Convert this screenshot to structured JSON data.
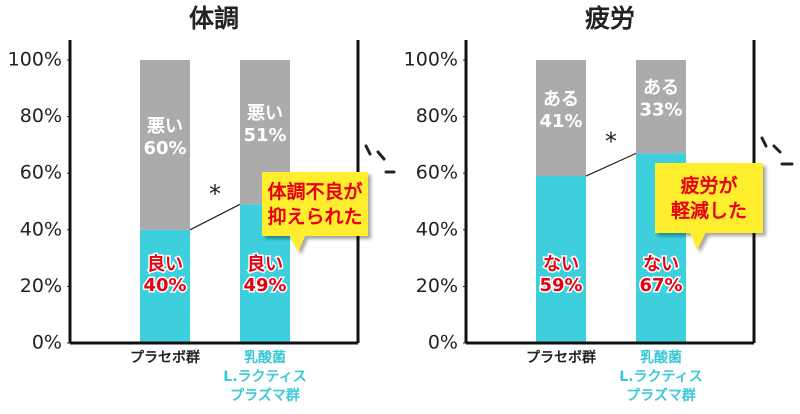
{
  "chart_data": [
    {
      "type": "stacked-bar",
      "title": "体調",
      "categories": [
        "プラセボ群",
        "乳酸菌\nL.ラクティス\nプラズマ群"
      ],
      "category_colors": [
        "#222222",
        "#3cc9d6"
      ],
      "series": [
        {
          "name": "良い",
          "color": "#3dd0dc",
          "label_color": "#e60012",
          "values": [
            40,
            49
          ],
          "value_labels": [
            "40%",
            "49%"
          ]
        },
        {
          "name": "悪い",
          "color": "#ababab",
          "label_color": "#ffffff",
          "values": [
            60,
            51
          ],
          "value_labels": [
            "60%",
            "51%"
          ]
        }
      ],
      "ylim": [
        0,
        100
      ],
      "yticks": [
        {
          "value": 0,
          "label": "0%"
        },
        {
          "value": 20,
          "label": "20%"
        },
        {
          "value": 40,
          "label": "40%"
        },
        {
          "value": 60,
          "label": "60%"
        },
        {
          "value": 80,
          "label": "80%"
        },
        {
          "value": 100,
          "label": "100%"
        }
      ],
      "annotation": "*",
      "callout": "体調不良が\n抑えられた"
    },
    {
      "type": "stacked-bar",
      "title": "疲労",
      "categories": [
        "プラセボ群",
        "乳酸菌\nL.ラクティス\nプラズマ群"
      ],
      "category_colors": [
        "#222222",
        "#3cc9d6"
      ],
      "series": [
        {
          "name": "ない",
          "color": "#3dd0dc",
          "label_color": "#e60012",
          "values": [
            59,
            67
          ],
          "value_labels": [
            "59%",
            "67%"
          ]
        },
        {
          "name": "ある",
          "color": "#ababab",
          "label_color": "#ffffff",
          "values": [
            41,
            33
          ],
          "value_labels": [
            "41%",
            "33%"
          ]
        }
      ],
      "ylim": [
        0,
        100
      ],
      "yticks": [
        {
          "value": 0,
          "label": "0%"
        },
        {
          "value": 20,
          "label": "20%"
        },
        {
          "value": 40,
          "label": "40%"
        },
        {
          "value": 60,
          "label": "60%"
        },
        {
          "value": 80,
          "label": "80%"
        },
        {
          "value": 100,
          "label": "100%"
        }
      ],
      "annotation": "*",
      "callout": "疲労が\n軽減した"
    }
  ]
}
